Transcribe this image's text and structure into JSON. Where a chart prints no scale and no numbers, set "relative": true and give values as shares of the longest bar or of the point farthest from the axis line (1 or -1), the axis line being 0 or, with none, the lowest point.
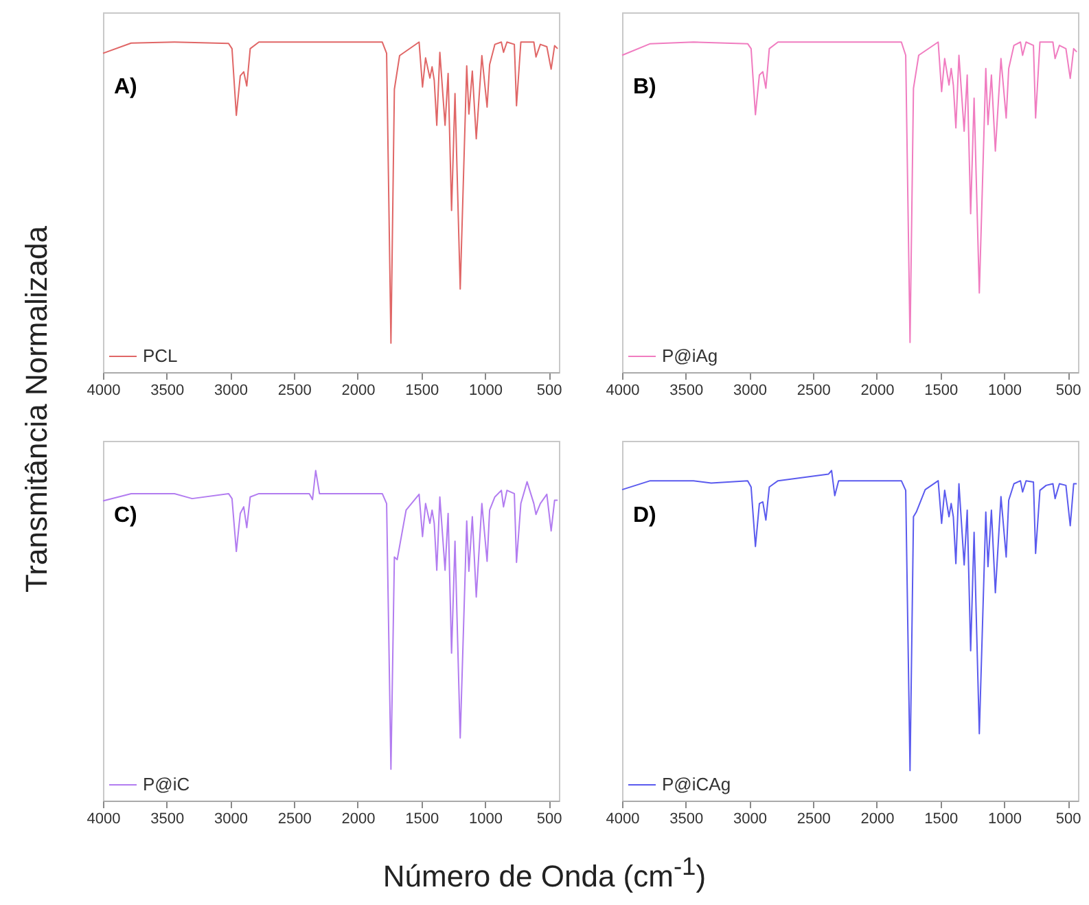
{
  "chart_data": [
    {
      "type": "line",
      "xlabel": "Número de Onda (cm$^{-1}$)",
      "ylabel": "Transmitância Normalizada",
      "annotations": [
        "A)"
      ],
      "relative": true,
      "xlim": [
        4000,
        420
      ],
      "xticks": [
        4000,
        3500,
        3000,
        2500,
        2000,
        1500,
        1000,
        500
      ],
      "tick_labels": "x",
      "legend": "bottom left",
      "x": [
        4000,
        3779,
        3439,
        3014,
        2987,
        2953,
        2922,
        2895,
        2871,
        2844,
        2776,
        1807,
        1773,
        1739,
        1712,
        1671,
        1518,
        1491,
        1467,
        1433,
        1416,
        1399,
        1379,
        1355,
        1314,
        1290,
        1263,
        1236,
        1195,
        1144,
        1127,
        1100,
        1069,
        1025,
        984,
        964,
        923,
        872,
        855,
        828,
        770,
        753,
        719,
        617,
        600,
        566,
        515,
        481,
        454,
        430
      ],
      "series": [
        {
          "name": "PCL",
          "color": "#e06666",
          "values": [
            0.966,
            0.997,
            1.0,
            0.996,
            0.98,
            0.778,
            0.898,
            0.91,
            0.867,
            0.98,
            1.0,
            1.0,
            0.966,
            0.088,
            0.857,
            0.959,
            1.0,
            0.864,
            0.952,
            0.891,
            0.925,
            0.884,
            0.748,
            0.969,
            0.748,
            0.905,
            0.49,
            0.844,
            0.252,
            0.928,
            0.782,
            0.912,
            0.707,
            0.959,
            0.803,
            0.932,
            0.993,
            1.0,
            0.969,
            1.0,
            0.993,
            0.807,
            1.0,
            1.0,
            0.955,
            0.993,
            0.986,
            0.918,
            0.989,
            0.98
          ]
        }
      ]
    },
    {
      "type": "line",
      "annotations": [
        "B)"
      ],
      "relative": true,
      "xlim": [
        4000,
        420
      ],
      "xticks": [
        4000,
        3500,
        3000,
        2500,
        2000,
        1500,
        1000,
        500
      ],
      "tick_labels": "x",
      "legend": "bottom left",
      "x": [
        4000,
        3779,
        3439,
        3014,
        2987,
        2953,
        2922,
        2895,
        2871,
        2844,
        2776,
        1807,
        1773,
        1739,
        1712,
        1671,
        1518,
        1491,
        1467,
        1433,
        1416,
        1399,
        1379,
        1355,
        1314,
        1290,
        1263,
        1236,
        1195,
        1144,
        1127,
        1100,
        1069,
        1025,
        984,
        964,
        923,
        872,
        855,
        828,
        770,
        753,
        719,
        617,
        600,
        566,
        515,
        481,
        454,
        430
      ],
      "series": [
        {
          "name": "P@iAg",
          "color": "#f07cc0",
          "values": [
            0.96,
            0.995,
            1.0,
            0.995,
            0.98,
            0.78,
            0.9,
            0.91,
            0.86,
            0.98,
            1.0,
            1.0,
            0.96,
            0.09,
            0.86,
            0.96,
            1.0,
            0.85,
            0.95,
            0.87,
            0.92,
            0.87,
            0.74,
            0.96,
            0.73,
            0.9,
            0.48,
            0.83,
            0.24,
            0.92,
            0.75,
            0.9,
            0.67,
            0.95,
            0.77,
            0.92,
            0.99,
            1.0,
            0.96,
            1.0,
            0.99,
            0.77,
            1.0,
            1.0,
            0.95,
            0.99,
            0.98,
            0.89,
            0.98,
            0.97
          ]
        }
      ]
    },
    {
      "type": "line",
      "annotations": [
        "C)"
      ],
      "relative": true,
      "xlim": [
        4000,
        420
      ],
      "xticks": [
        4000,
        3500,
        3000,
        2500,
        2000,
        1500,
        1000,
        500
      ],
      "tick_labels": "x",
      "legend": "bottom left",
      "x": [
        4000,
        3779,
        3439,
        3300,
        3014,
        2987,
        2953,
        2922,
        2895,
        2871,
        2844,
        2776,
        2380,
        2355,
        2330,
        2300,
        1807,
        1773,
        1739,
        1712,
        1690,
        1620,
        1518,
        1491,
        1467,
        1433,
        1416,
        1399,
        1379,
        1355,
        1314,
        1290,
        1263,
        1236,
        1195,
        1144,
        1127,
        1100,
        1069,
        1025,
        984,
        964,
        923,
        872,
        855,
        828,
        770,
        753,
        719,
        670,
        617,
        600,
        566,
        515,
        481,
        454,
        430
      ],
      "series": [
        {
          "name": "P@iC",
          "color": "#b27cf0",
          "values": [
            0.908,
            0.93,
            0.93,
            0.915,
            0.93,
            0.915,
            0.755,
            0.87,
            0.89,
            0.827,
            0.92,
            0.93,
            0.93,
            0.912,
            1.0,
            0.93,
            0.93,
            0.9,
            0.095,
            0.738,
            0.73,
            0.88,
            0.928,
            0.8,
            0.9,
            0.84,
            0.88,
            0.84,
            0.698,
            0.92,
            0.698,
            0.87,
            0.447,
            0.786,
            0.19,
            0.847,
            0.695,
            0.86,
            0.617,
            0.9,
            0.725,
            0.88,
            0.92,
            0.94,
            0.89,
            0.94,
            0.93,
            0.722,
            0.9,
            0.966,
            0.9,
            0.867,
            0.9,
            0.928,
            0.817,
            0.91,
            0.91
          ]
        }
      ]
    },
    {
      "type": "line",
      "annotations": [
        "D)"
      ],
      "relative": true,
      "xlim": [
        4000,
        420
      ],
      "xticks": [
        4000,
        3500,
        3000,
        2500,
        2000,
        1500,
        1000,
        500
      ],
      "tick_labels": "x",
      "legend": "bottom left",
      "x": [
        4000,
        3779,
        3439,
        3300,
        3014,
        2987,
        2953,
        2922,
        2895,
        2871,
        2844,
        2776,
        2380,
        2355,
        2330,
        2300,
        1807,
        1773,
        1739,
        1712,
        1690,
        1620,
        1518,
        1491,
        1467,
        1433,
        1416,
        1399,
        1379,
        1355,
        1314,
        1290,
        1263,
        1236,
        1195,
        1144,
        1127,
        1100,
        1069,
        1025,
        984,
        964,
        923,
        872,
        855,
        828,
        770,
        753,
        719,
        670,
        617,
        600,
        566,
        515,
        481,
        454,
        430
      ],
      "series": [
        {
          "name": "P@iCAg",
          "color": "#5a5aee",
          "values": [
            0.942,
            0.969,
            0.969,
            0.962,
            0.969,
            0.95,
            0.77,
            0.9,
            0.905,
            0.85,
            0.95,
            0.969,
            0.989,
            1.0,
            0.924,
            0.969,
            0.969,
            0.94,
            0.091,
            0.86,
            0.874,
            0.942,
            0.969,
            0.84,
            0.94,
            0.86,
            0.9,
            0.86,
            0.718,
            0.96,
            0.714,
            0.88,
            0.454,
            0.813,
            0.203,
            0.874,
            0.709,
            0.88,
            0.63,
            0.921,
            0.738,
            0.91,
            0.96,
            0.969,
            0.935,
            0.969,
            0.965,
            0.749,
            0.94,
            0.955,
            0.96,
            0.915,
            0.96,
            0.955,
            0.833,
            0.96,
            0.96
          ]
        }
      ]
    }
  ]
}
